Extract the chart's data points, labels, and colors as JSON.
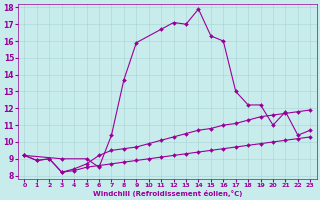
{
  "xlabel": "Windchill (Refroidissement éolien,°C)",
  "bg_color": "#c8ecec",
  "line_color": "#990099",
  "xlim": [
    -0.5,
    23.5
  ],
  "ylim": [
    7.8,
    18.2
  ],
  "yticks": [
    8,
    9,
    10,
    11,
    12,
    13,
    14,
    15,
    16,
    17,
    18
  ],
  "xticks": [
    0,
    1,
    2,
    3,
    4,
    5,
    6,
    7,
    8,
    9,
    10,
    11,
    12,
    13,
    14,
    15,
    16,
    17,
    18,
    19,
    20,
    21,
    22,
    23
  ],
  "series": [
    {
      "x": [
        0,
        1,
        2,
        3,
        4,
        5,
        6,
        7,
        8,
        9,
        10,
        11,
        12,
        13,
        14,
        15,
        16,
        17,
        18,
        19,
        20,
        21,
        22,
        23
      ],
      "y": [
        9.2,
        8.9,
        9.0,
        8.2,
        8.3,
        8.5,
        8.6,
        8.7,
        8.8,
        8.9,
        9.0,
        9.1,
        9.2,
        9.3,
        9.4,
        9.5,
        9.6,
        9.7,
        9.8,
        9.9,
        10.0,
        10.1,
        10.2,
        10.3
      ]
    },
    {
      "x": [
        0,
        1,
        2,
        3,
        4,
        5,
        6,
        7,
        8,
        9,
        10,
        11,
        12,
        13,
        14,
        15,
        16,
        17,
        18,
        19,
        20,
        21,
        22,
        23
      ],
      "y": [
        9.2,
        8.9,
        9.0,
        8.2,
        8.4,
        8.7,
        9.2,
        9.5,
        9.6,
        9.7,
        9.9,
        10.1,
        10.3,
        10.5,
        10.7,
        10.8,
        11.0,
        11.1,
        11.3,
        11.5,
        11.6,
        11.7,
        11.8,
        11.9
      ]
    },
    {
      "x": [
        0,
        3,
        5,
        6,
        7,
        8,
        9,
        11,
        12,
        13,
        14,
        15,
        16,
        17,
        18,
        19,
        20,
        21,
        22,
        23
      ],
      "y": [
        9.2,
        9.0,
        9.0,
        8.5,
        10.4,
        13.7,
        15.9,
        16.7,
        17.1,
        17.0,
        17.9,
        16.3,
        16.0,
        13.0,
        12.2,
        12.2,
        11.0,
        11.8,
        10.4,
        10.7
      ]
    }
  ]
}
